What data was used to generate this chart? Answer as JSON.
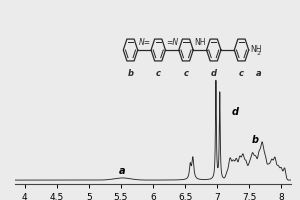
{
  "xlim_left": 8.15,
  "xlim_right": 3.85,
  "ylim": [
    -0.03,
    1.05
  ],
  "xlabel_ticks": [
    8.0,
    7.5,
    7.0,
    6.5,
    6.0,
    5.5,
    5.0,
    4.5,
    4.0
  ],
  "background_color": "#ebebeb",
  "line_color": "#2a2a2a",
  "figsize": [
    3.0,
    2.0
  ],
  "dpi": 100
}
